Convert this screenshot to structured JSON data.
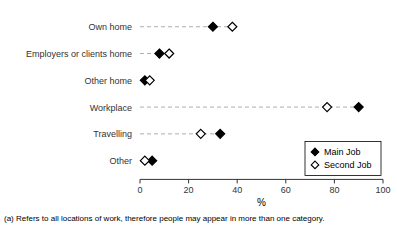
{
  "chart_data": {
    "type": "dot",
    "orientation": "horizontal",
    "categories": [
      "Own home",
      "Employers or clients home",
      "Other home",
      "Workplace",
      "Travelling",
      "Other"
    ],
    "series": [
      {
        "name": "Main Job",
        "color": "#000000",
        "marker": "filled-diamond",
        "values": [
          30,
          8,
          2,
          90,
          33,
          5
        ]
      },
      {
        "name": "Second Job",
        "color": "#000000",
        "marker": "open-diamond",
        "values": [
          38,
          12,
          4,
          77,
          25,
          2
        ]
      }
    ],
    "xlabel": "%",
    "xlim": [
      0,
      100
    ],
    "xticks": [
      0,
      20,
      40,
      60,
      80,
      100
    ],
    "grid": false,
    "legend": "lower right",
    "footnote": "(a) Refers to all locations of work, therefore people may appear in more than one category."
  }
}
